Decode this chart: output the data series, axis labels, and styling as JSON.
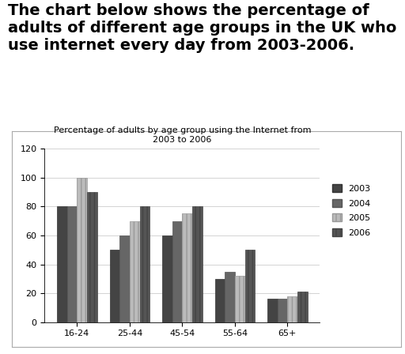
{
  "title": "Percentage of adults by age group using the Internet from\n2003 to 2006",
  "categories": [
    "16-24",
    "25-44",
    "45-54",
    "55-64",
    "65+"
  ],
  "years": [
    "2003",
    "2004",
    "2005",
    "2006"
  ],
  "values": {
    "2003": [
      80,
      50,
      60,
      30,
      16
    ],
    "2004": [
      80,
      60,
      70,
      35,
      16
    ],
    "2005": [
      100,
      70,
      75,
      32,
      18
    ],
    "2006": [
      90,
      80,
      80,
      50,
      21
    ]
  },
  "bar_colors": [
    "#444444",
    "#666666",
    "#bbbbbb",
    "#555555"
  ],
  "bar_hatches": [
    "",
    "",
    "|||",
    "|||"
  ],
  "bar_edge_colors": [
    "#333333",
    "#555555",
    "#999999",
    "#444444"
  ],
  "ylim": [
    0,
    120
  ],
  "yticks": [
    0,
    20,
    40,
    60,
    80,
    100,
    120
  ],
  "title_fontsize": 8,
  "tick_fontsize": 8,
  "legend_fontsize": 8,
  "header_text": "The chart below shows the percentage of\nadults of different age groups in the UK who\nuse internet every day from 2003-2006.",
  "header_fontsize": 14,
  "background_color": "#ffffff",
  "chart_background": "#ffffff"
}
